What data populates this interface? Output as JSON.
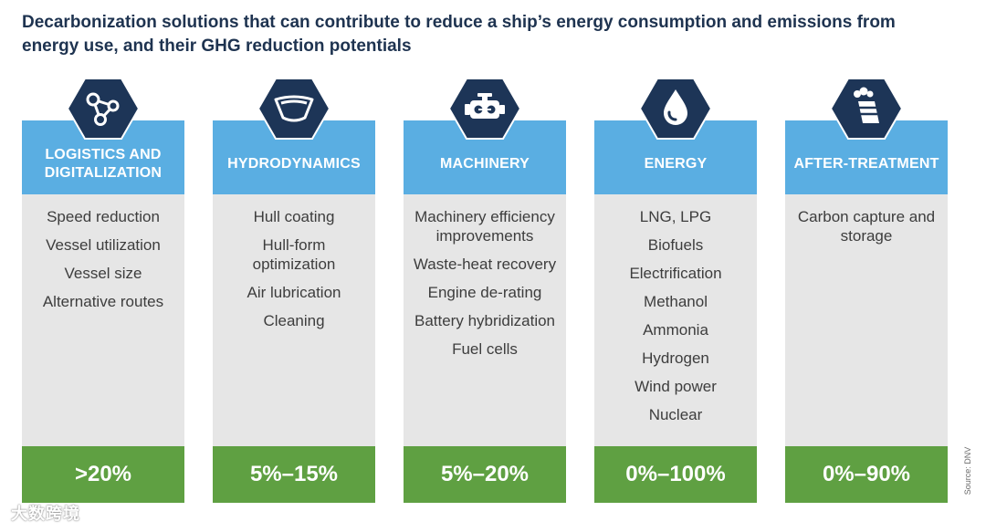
{
  "title": "Decarbonization solutions that can contribute to reduce a ship’s energy consumption and emissions from energy use, and their GHG reduction potentials",
  "colors": {
    "title": "#1e3350",
    "hexagon": "#1d3557",
    "header": "#5aaee2",
    "body": "#e6e6e6",
    "footer": "#5fa042"
  },
  "columns": [
    {
      "icon": "network-nodes-icon",
      "header": "LOGISTICS AND DIGITALIZATION",
      "items": [
        "Speed reduction",
        "Vessel utilization",
        "Vessel size",
        "Alternative routes"
      ],
      "potential": ">20%"
    },
    {
      "icon": "ship-hull-icon",
      "header": "HYDRODYNAMICS",
      "items": [
        "Hull coating",
        "Hull-form optimization",
        "Air lubrication",
        "Cleaning"
      ],
      "potential": "5%–15%"
    },
    {
      "icon": "engine-icon",
      "header": "MACHINERY",
      "items": [
        "Machinery efficiency improvements",
        "Waste-heat recovery",
        "Engine de-rating",
        "Battery hybridization",
        "Fuel cells"
      ],
      "potential": "5%–20%"
    },
    {
      "icon": "fuel-drop-icon",
      "header": "ENERGY",
      "items": [
        "LNG, LPG",
        "Biofuels",
        "Electrification",
        "Methanol",
        "Ammonia",
        "Hydrogen",
        "Wind power",
        "Nuclear"
      ],
      "potential": "0%–100%"
    },
    {
      "icon": "smokestack-icon",
      "header": "AFTER-TREATMENT",
      "items": [
        "Carbon capture and storage"
      ],
      "potential": "0%–90%"
    }
  ],
  "source": "Source: DNV",
  "watermark": "大数跨境"
}
